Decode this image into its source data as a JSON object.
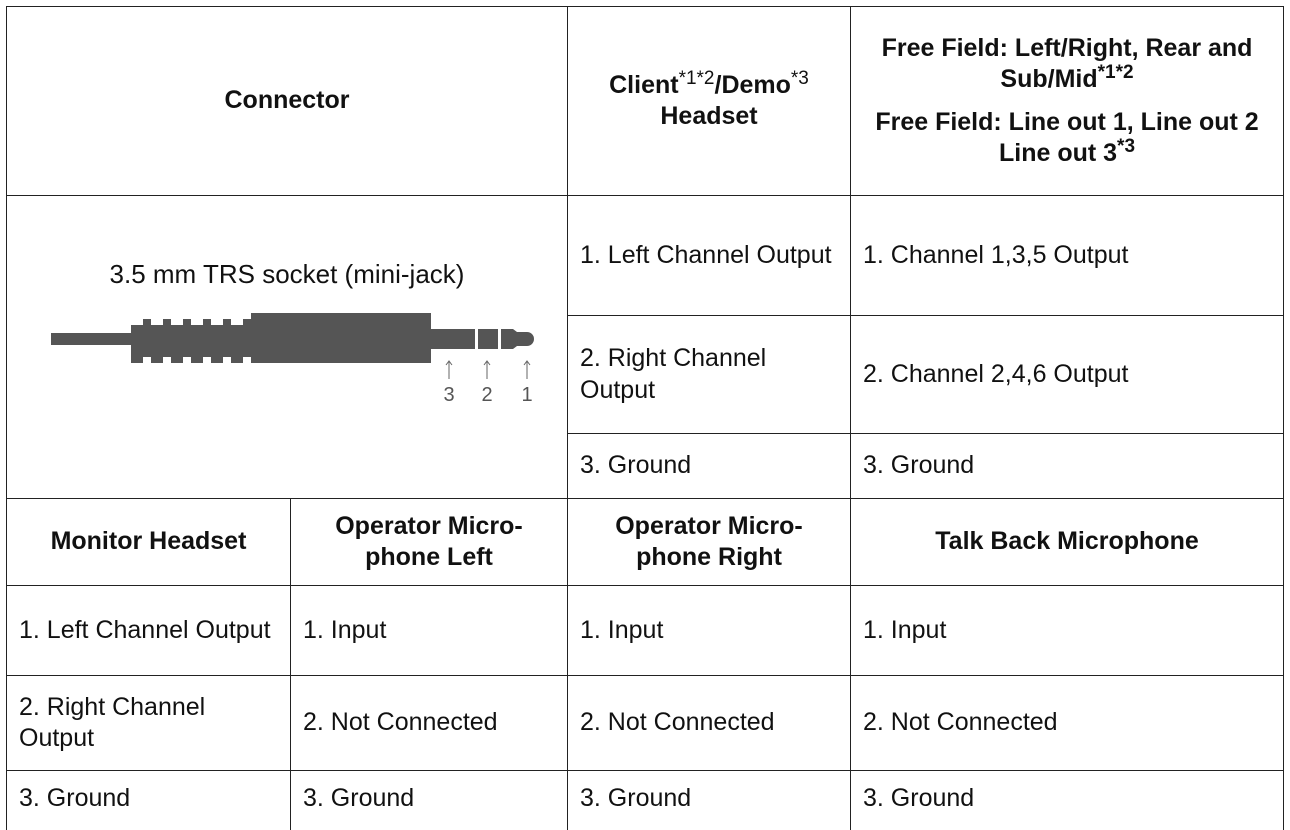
{
  "header": {
    "connector": "Connector",
    "client": {
      "part1": "Client",
      "sup1": "*1*2",
      "part2": "/Demo",
      "sup2": "*3",
      "part3": "Headset"
    },
    "free_field": {
      "line1": "Free Field: Left/Right, Rear and Sub/Mid",
      "sup1": "*1*2",
      "line2": "Free Field: Line out 1, Line out 2 Line out 3",
      "sup2": "*3"
    }
  },
  "connector": {
    "label": "3.5 mm TRS socket (mini-jack)",
    "pins": [
      "3",
      "2",
      "1"
    ]
  },
  "pins_table": {
    "rows": [
      [
        "1. Left Channel Output",
        "1. Channel 1,3,5 Output"
      ],
      [
        "2. Right Channel Output",
        "2. Channel 2,4,6 Output"
      ],
      [
        "3. Ground",
        "3. Ground"
      ]
    ]
  },
  "table": {
    "header": [
      "Monitor Headset",
      "Operator Micro-phone Left",
      "Operator Micro-phone Right",
      "Talk Back Microphone"
    ],
    "rows": [
      [
        "1. Left Channel Output",
        "1. Input",
        "1. Input",
        "1. Input"
      ],
      [
        "2. Right Channel Output",
        "2. Not Connected",
        "2. Not Connected",
        "2. Not Connected"
      ],
      [
        "3. Ground",
        "3. Ground",
        "3. Ground",
        "3. Ground"
      ]
    ]
  }
}
